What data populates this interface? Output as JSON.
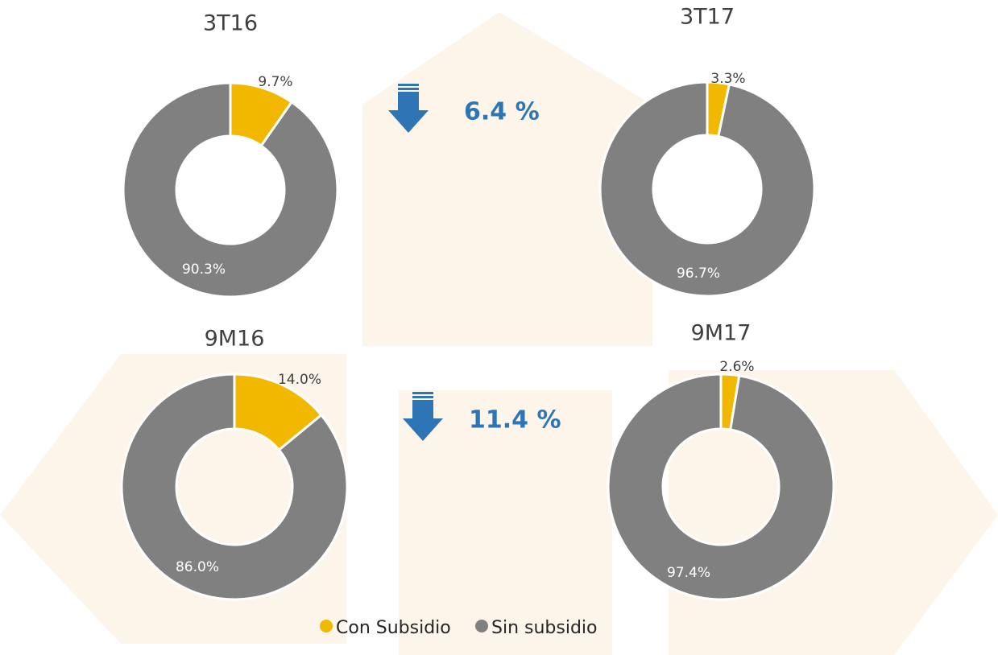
{
  "chart_data": [
    {
      "type": "donut",
      "title": "3T16",
      "values": [
        9.7,
        90.3
      ],
      "value_labels": [
        "9.7%",
        "90.3%"
      ],
      "colors": [
        "#f2b800",
        "#808080"
      ]
    },
    {
      "type": "donut",
      "title": "3T17",
      "values": [
        3.3,
        96.7
      ],
      "value_labels": [
        "3.3%",
        "96.7%"
      ],
      "colors": [
        "#f2b800",
        "#808080"
      ]
    },
    {
      "type": "donut",
      "title": "9M16",
      "values": [
        14.0,
        86.0
      ],
      "value_labels": [
        "14.0%",
        "86.0%"
      ],
      "colors": [
        "#f2b800",
        "#808080"
      ]
    },
    {
      "type": "donut",
      "title": "9M17",
      "values": [
        2.6,
        97.4
      ],
      "value_labels": [
        "2.6%",
        "97.4%"
      ],
      "colors": [
        "#f2b800",
        "#808080"
      ]
    }
  ],
  "annotations": [
    "6.4 %",
    "11.4 %"
  ],
  "legend": {
    "labels": [
      "Con Subsidio",
      "Sin subsidio"
    ],
    "colors": [
      "#f2b800",
      "#808080"
    ]
  }
}
